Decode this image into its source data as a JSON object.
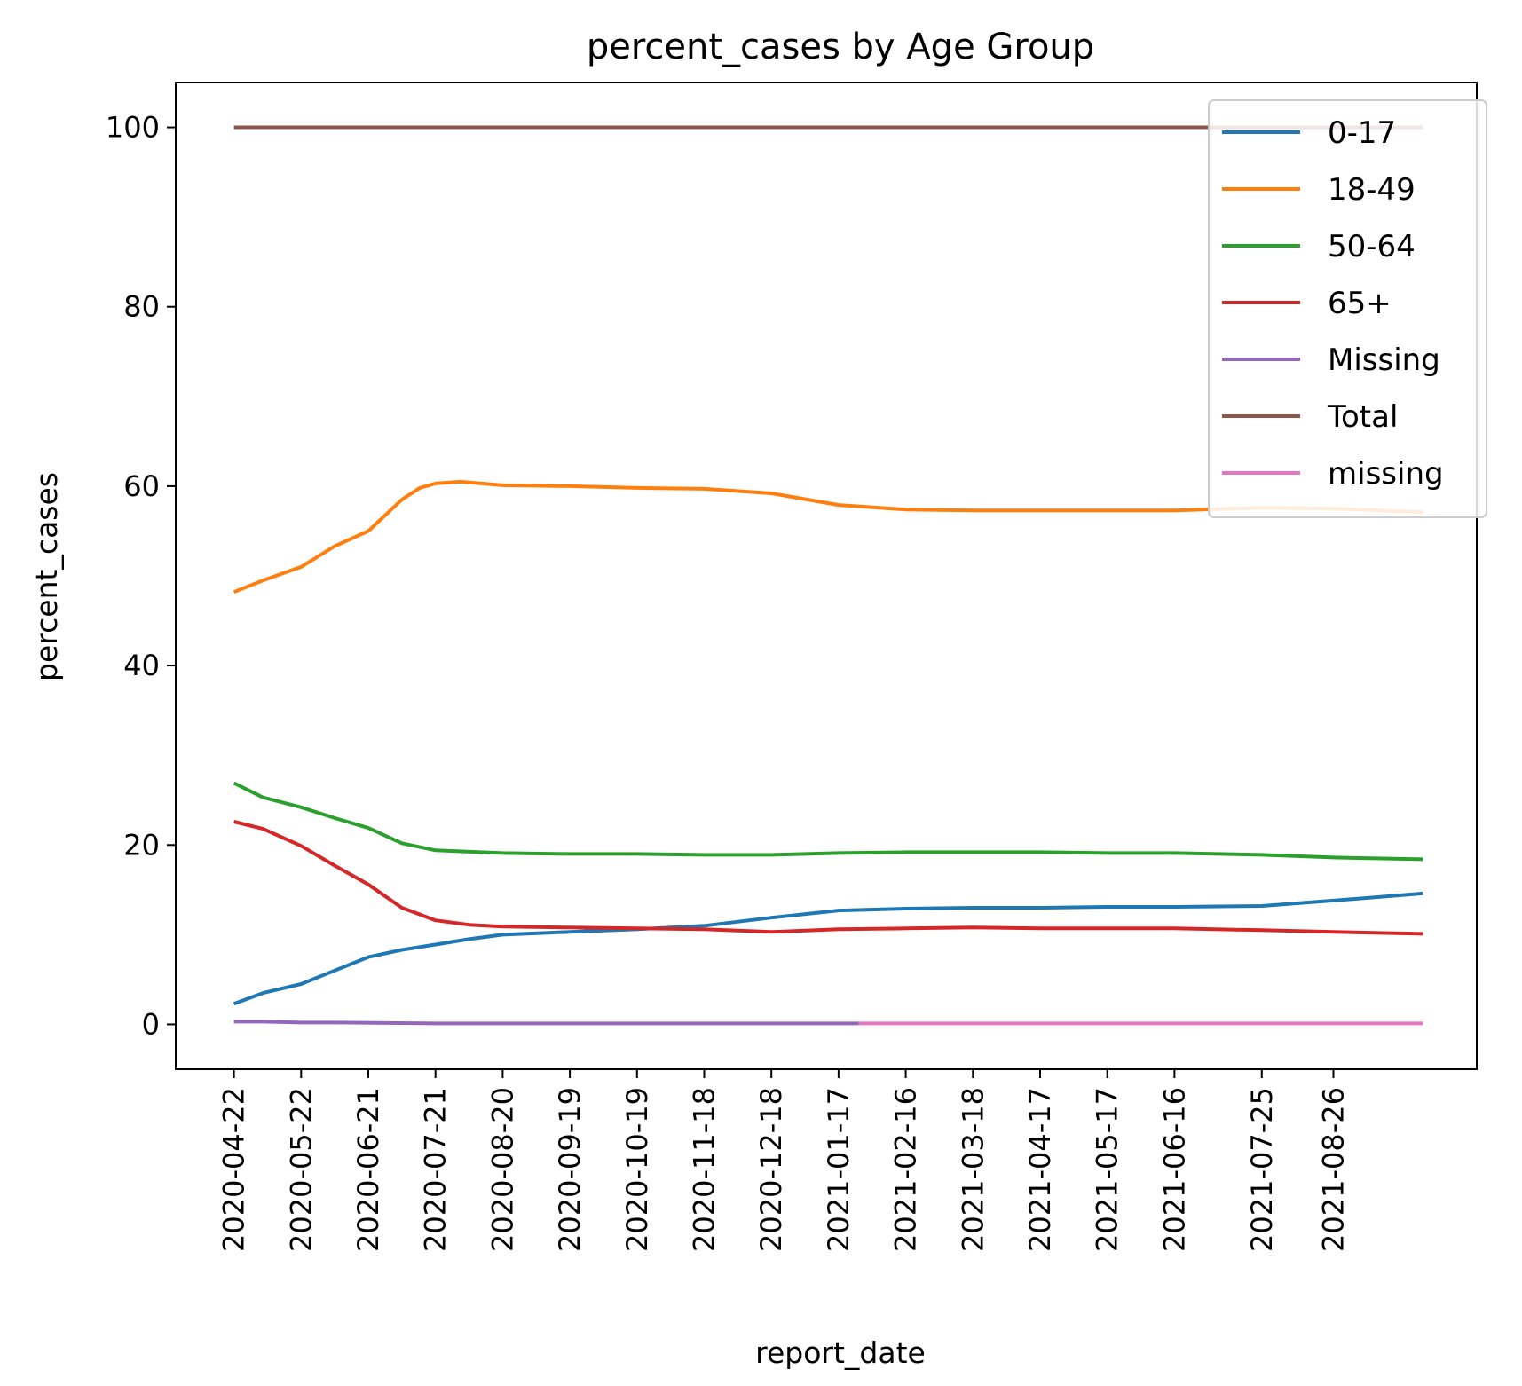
{
  "chart_data": {
    "type": "line",
    "title": "percent_cases by Age Group",
    "xlabel": "report_date",
    "ylabel": "percent_cases",
    "ylim": [
      -5,
      105
    ],
    "xlim": [
      "2020-03-27",
      "2021-10-29"
    ],
    "yticks": [
      0,
      20,
      40,
      60,
      80,
      100
    ],
    "xticks": [
      "2020-04-22",
      "2020-05-22",
      "2020-06-21",
      "2020-07-21",
      "2020-08-20",
      "2020-09-19",
      "2020-10-19",
      "2020-11-18",
      "2020-12-18",
      "2021-01-17",
      "2021-02-16",
      "2021-03-18",
      "2021-04-17",
      "2021-05-17",
      "2021-06-16",
      "2021-07-25",
      "2021-08-26"
    ],
    "grid": false,
    "legend_position": "top-right",
    "series": [
      {
        "name": "0-17",
        "color": "#1f77b4",
        "points": [
          [
            "2020-04-22",
            2.3
          ],
          [
            "2020-05-05",
            3.5
          ],
          [
            "2020-05-22",
            4.5
          ],
          [
            "2020-06-06",
            6.0
          ],
          [
            "2020-06-21",
            7.5
          ],
          [
            "2020-07-06",
            8.3
          ],
          [
            "2020-07-21",
            8.9
          ],
          [
            "2020-08-05",
            9.5
          ],
          [
            "2020-08-20",
            10.0
          ],
          [
            "2020-09-19",
            10.3
          ],
          [
            "2020-10-19",
            10.6
          ],
          [
            "2020-11-18",
            11.0
          ],
          [
            "2020-12-18",
            11.9
          ],
          [
            "2021-01-17",
            12.7
          ],
          [
            "2021-02-16",
            12.9
          ],
          [
            "2021-03-18",
            13.0
          ],
          [
            "2021-04-17",
            13.0
          ],
          [
            "2021-05-17",
            13.1
          ],
          [
            "2021-06-16",
            13.1
          ],
          [
            "2021-07-25",
            13.2
          ],
          [
            "2021-08-26",
            13.8
          ],
          [
            "2021-10-05",
            14.6
          ]
        ]
      },
      {
        "name": "18-49",
        "color": "#ff7f0e",
        "points": [
          [
            "2020-04-22",
            48.2
          ],
          [
            "2020-05-05",
            49.5
          ],
          [
            "2020-05-22",
            51.0
          ],
          [
            "2020-06-06",
            53.3
          ],
          [
            "2020-06-21",
            55.0
          ],
          [
            "2020-07-06",
            58.5
          ],
          [
            "2020-07-14",
            59.8
          ],
          [
            "2020-07-21",
            60.3
          ],
          [
            "2020-08-01",
            60.5
          ],
          [
            "2020-08-20",
            60.1
          ],
          [
            "2020-09-19",
            60.0
          ],
          [
            "2020-10-19",
            59.8
          ],
          [
            "2020-11-18",
            59.7
          ],
          [
            "2020-12-18",
            59.2
          ],
          [
            "2021-01-17",
            57.9
          ],
          [
            "2021-02-16",
            57.4
          ],
          [
            "2021-03-18",
            57.3
          ],
          [
            "2021-04-17",
            57.3
          ],
          [
            "2021-05-17",
            57.3
          ],
          [
            "2021-06-16",
            57.3
          ],
          [
            "2021-07-25",
            57.6
          ],
          [
            "2021-08-26",
            57.5
          ],
          [
            "2021-10-05",
            57.1
          ]
        ]
      },
      {
        "name": "50-64",
        "color": "#2ca02c",
        "points": [
          [
            "2020-04-22",
            26.9
          ],
          [
            "2020-05-05",
            25.3
          ],
          [
            "2020-05-22",
            24.2
          ],
          [
            "2020-06-06",
            23.0
          ],
          [
            "2020-06-21",
            21.9
          ],
          [
            "2020-07-06",
            20.2
          ],
          [
            "2020-07-21",
            19.4
          ],
          [
            "2020-08-20",
            19.1
          ],
          [
            "2020-09-19",
            19.0
          ],
          [
            "2020-10-19",
            19.0
          ],
          [
            "2020-11-18",
            18.9
          ],
          [
            "2020-12-18",
            18.9
          ],
          [
            "2021-01-17",
            19.1
          ],
          [
            "2021-02-16",
            19.2
          ],
          [
            "2021-03-18",
            19.2
          ],
          [
            "2021-04-17",
            19.2
          ],
          [
            "2021-05-17",
            19.1
          ],
          [
            "2021-06-16",
            19.1
          ],
          [
            "2021-07-25",
            18.9
          ],
          [
            "2021-08-26",
            18.6
          ],
          [
            "2021-10-05",
            18.4
          ]
        ]
      },
      {
        "name": "65+",
        "color": "#d62728",
        "points": [
          [
            "2020-04-22",
            22.6
          ],
          [
            "2020-05-05",
            21.8
          ],
          [
            "2020-05-22",
            19.9
          ],
          [
            "2020-06-06",
            17.7
          ],
          [
            "2020-06-21",
            15.6
          ],
          [
            "2020-07-06",
            13.0
          ],
          [
            "2020-07-21",
            11.6
          ],
          [
            "2020-08-05",
            11.1
          ],
          [
            "2020-08-20",
            10.9
          ],
          [
            "2020-09-19",
            10.8
          ],
          [
            "2020-10-19",
            10.7
          ],
          [
            "2020-11-18",
            10.6
          ],
          [
            "2020-12-18",
            10.3
          ],
          [
            "2021-01-17",
            10.6
          ],
          [
            "2021-02-16",
            10.7
          ],
          [
            "2021-03-18",
            10.8
          ],
          [
            "2021-04-17",
            10.7
          ],
          [
            "2021-05-17",
            10.7
          ],
          [
            "2021-06-16",
            10.7
          ],
          [
            "2021-07-25",
            10.5
          ],
          [
            "2021-08-26",
            10.3
          ],
          [
            "2021-10-05",
            10.1
          ]
        ]
      },
      {
        "name": "Missing",
        "color": "#9467bd",
        "points": [
          [
            "2020-04-22",
            0.3
          ],
          [
            "2020-05-05",
            0.3
          ],
          [
            "2020-05-22",
            0.2
          ],
          [
            "2020-06-06",
            0.2
          ],
          [
            "2020-07-21",
            0.1
          ],
          [
            "2020-10-19",
            0.1
          ],
          [
            "2021-01-26",
            0.1
          ]
        ]
      },
      {
        "name": "Total",
        "color": "#8c564b",
        "points": [
          [
            "2020-04-22",
            100
          ],
          [
            "2021-10-05",
            100
          ]
        ]
      },
      {
        "name": "missing",
        "color": "#e377c2",
        "points": [
          [
            "2021-01-26",
            0.1
          ],
          [
            "2021-10-05",
            0.1
          ]
        ]
      }
    ]
  }
}
